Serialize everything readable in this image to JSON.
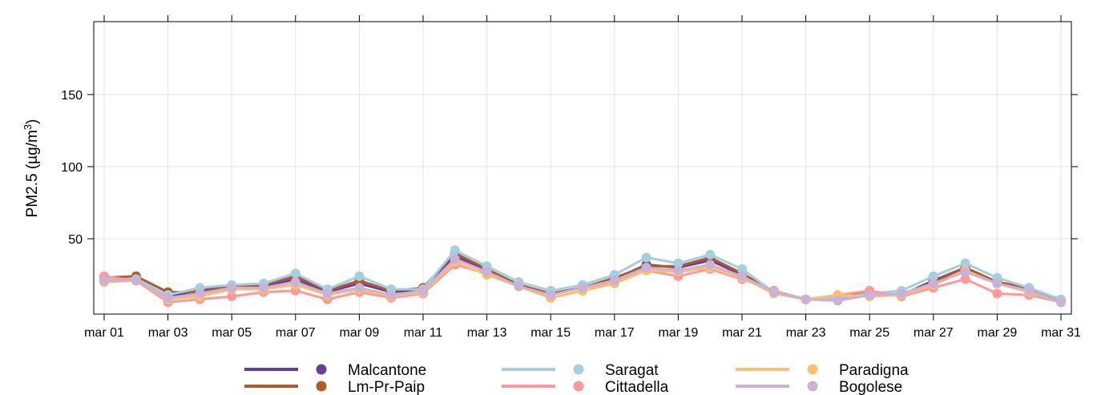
{
  "chart_data": {
    "type": "line",
    "ylabel": "PM2.5 (µg/m",
    "ylabel_sup": "3",
    "ylabel_close": ")",
    "ylim": [
      0,
      200
    ],
    "yticks": [
      50,
      100,
      150
    ],
    "grid": true,
    "legend_position": "bottom",
    "x_ticks": [
      "mar 01",
      "mar 03",
      "mar 05",
      "mar 07",
      "mar 09",
      "mar 11",
      "mar 13",
      "mar 15",
      "mar 17",
      "mar 19",
      "mar 21",
      "mar 23",
      "mar 25",
      "mar 27",
      "mar 29",
      "mar 31"
    ],
    "x_tick_days": [
      1,
      3,
      5,
      7,
      9,
      11,
      13,
      15,
      17,
      19,
      21,
      23,
      25,
      27,
      29,
      31
    ],
    "x_days": [
      1,
      2,
      3,
      4,
      5,
      6,
      7,
      8,
      9,
      10,
      11,
      12,
      13,
      14,
      15,
      16,
      17,
      18,
      19,
      20,
      21,
      22,
      23,
      24,
      25,
      26,
      27,
      28,
      29,
      30,
      31
    ],
    "series": [
      {
        "name": "Malcantone",
        "color": "#6a3d9a",
        "values": [
          21,
          22,
          10,
          14,
          17,
          17,
          22,
          13,
          19,
          13,
          15,
          38,
          28,
          18,
          12,
          16,
          22,
          32,
          30,
          35,
          25,
          13,
          8,
          8,
          12,
          11,
          21,
          30,
          20,
          15,
          7
        ]
      },
      {
        "name": "Lm-Pr-Paip",
        "color": "#b15928",
        "values": [
          23,
          24,
          13,
          13,
          17,
          18,
          24,
          14,
          21,
          14,
          16,
          40,
          29,
          18,
          12,
          16,
          23,
          31,
          31,
          37,
          26,
          13,
          8,
          9,
          13,
          11,
          20,
          30,
          20,
          16,
          7
        ]
      },
      {
        "name": "Saragat",
        "color": "#a6cee3",
        "values": [
          22,
          22,
          11,
          16,
          18,
          19,
          26,
          15,
          24,
          15,
          15,
          42,
          31,
          20,
          14,
          18,
          25,
          37,
          33,
          39,
          29,
          13,
          8,
          9,
          12,
          14,
          24,
          33,
          23,
          16,
          8
        ]
      },
      {
        "name": "Cittadella",
        "color": "#fb9a99",
        "values": [
          24,
          21,
          6,
          8,
          10,
          13,
          14,
          8,
          13,
          9,
          12,
          32,
          26,
          17,
          9,
          14,
          20,
          28,
          24,
          29,
          22,
          14,
          8,
          11,
          14,
          10,
          16,
          22,
          12,
          11,
          6
        ]
      },
      {
        "name": "Paradigna",
        "color": "#fdbf6f",
        "values": [
          20,
          21,
          8,
          10,
          15,
          15,
          18,
          11,
          15,
          10,
          13,
          34,
          25,
          17,
          9,
          14,
          19,
          28,
          27,
          30,
          23,
          12,
          8,
          11,
          10,
          11,
          18,
          28,
          19,
          13,
          6
        ]
      },
      {
        "name": "Bogolese",
        "color": "#cab2d6",
        "values": [
          21,
          21,
          9,
          12,
          16,
          16,
          20,
          12,
          16,
          11,
          14,
          36,
          27,
          17,
          11,
          16,
          21,
          30,
          28,
          32,
          24,
          13,
          8,
          7,
          11,
          12,
          19,
          27,
          19,
          14,
          6
        ]
      }
    ]
  }
}
